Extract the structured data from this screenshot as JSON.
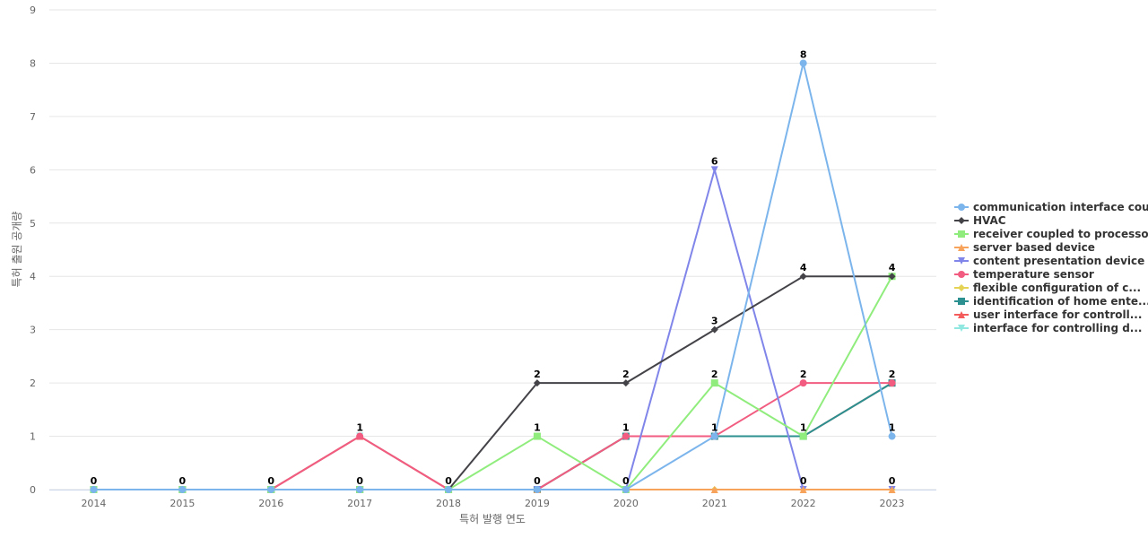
{
  "chart_data": {
    "type": "line",
    "title": "",
    "xlabel": "특허 발행 연도",
    "ylabel": "특허 출원 공개량",
    "ylim": [
      0,
      9
    ],
    "yticks": [
      "0",
      "1",
      "2",
      "3",
      "4",
      "5",
      "6",
      "7",
      "8",
      "9"
    ],
    "categories": [
      "2014",
      "2015",
      "2016",
      "2017",
      "2018",
      "2019",
      "2020",
      "2021",
      "2022",
      "2023"
    ],
    "grid": true,
    "legend_position": "right",
    "series": [
      {
        "name": "communication interface cou...",
        "color": "#7cb5ec",
        "marker": "circle",
        "values": [
          0,
          0,
          0,
          0,
          0,
          0,
          0,
          1,
          8,
          1
        ]
      },
      {
        "name": "HVAC",
        "color": "#434348",
        "marker": "diamond",
        "values": [
          0,
          0,
          0,
          0,
          0,
          2,
          2,
          3,
          4,
          4
        ]
      },
      {
        "name": "receiver coupled to processor",
        "color": "#90ed7d",
        "marker": "square",
        "values": [
          0,
          0,
          0,
          0,
          0,
          1,
          0,
          2,
          1,
          4
        ]
      },
      {
        "name": "server based device",
        "color": "#f7a35c",
        "marker": "triangle",
        "values": [
          0,
          0,
          0,
          0,
          0,
          0,
          0,
          0,
          0,
          0
        ]
      },
      {
        "name": "content presentation device",
        "color": "#8085e9",
        "marker": "triangle-down",
        "values": [
          0,
          0,
          0,
          0,
          0,
          0,
          0,
          6,
          0,
          0
        ]
      },
      {
        "name": "temperature sensor",
        "color": "#f15c80",
        "marker": "circle",
        "values": [
          0,
          0,
          0,
          1,
          0,
          0,
          1,
          1,
          2,
          2
        ]
      },
      {
        "name": "flexible configuration of c...",
        "color": "#e4d354",
        "marker": "diamond",
        "values": [
          0,
          0,
          0,
          0,
          0,
          0,
          0,
          0,
          0,
          0
        ]
      },
      {
        "name": "identification of home ente...",
        "color": "#2b908f",
        "marker": "square",
        "values": [
          0,
          0,
          0,
          0,
          0,
          0,
          1,
          1,
          1,
          2
        ]
      },
      {
        "name": "user interface for controll...",
        "color": "#f45b5b",
        "marker": "triangle",
        "values": [
          0,
          0,
          0,
          1,
          0,
          0,
          1,
          1,
          1,
          2
        ]
      },
      {
        "name": "interface for controlling d...",
        "color": "#91e8e1",
        "marker": "triangle-down",
        "values": [
          0,
          0,
          0,
          1,
          0,
          0,
          1,
          1,
          1,
          2
        ]
      }
    ],
    "data_labels": [
      {
        "x": "2014",
        "y": 0,
        "text": "0"
      },
      {
        "x": "2015",
        "y": 0,
        "text": "0"
      },
      {
        "x": "2016",
        "y": 0,
        "text": "0"
      },
      {
        "x": "2017",
        "y": 1,
        "text": "1"
      },
      {
        "x": "2017",
        "y": 0,
        "text": "0"
      },
      {
        "x": "2018",
        "y": 0,
        "text": "0"
      },
      {
        "x": "2019",
        "y": 2,
        "text": "2"
      },
      {
        "x": "2019",
        "y": 1,
        "text": "1"
      },
      {
        "x": "2019",
        "y": 0,
        "text": "0"
      },
      {
        "x": "2020",
        "y": 2,
        "text": "2"
      },
      {
        "x": "2020",
        "y": 1,
        "text": "1"
      },
      {
        "x": "2020",
        "y": 0,
        "text": "0"
      },
      {
        "x": "2021",
        "y": 6,
        "text": "6"
      },
      {
        "x": "2021",
        "y": 3,
        "text": "3"
      },
      {
        "x": "2021",
        "y": 2,
        "text": "2"
      },
      {
        "x": "2021",
        "y": 1,
        "text": "1"
      },
      {
        "x": "2022",
        "y": 8,
        "text": "8"
      },
      {
        "x": "2022",
        "y": 4,
        "text": "4"
      },
      {
        "x": "2022",
        "y": 2,
        "text": "2"
      },
      {
        "x": "2022",
        "y": 1,
        "text": "1"
      },
      {
        "x": "2022",
        "y": 0,
        "text": "0"
      },
      {
        "x": "2023",
        "y": 4,
        "text": "4"
      },
      {
        "x": "2023",
        "y": 2,
        "text": "2"
      },
      {
        "x": "2023",
        "y": 1,
        "text": "1"
      },
      {
        "x": "2023",
        "y": 0,
        "text": "0"
      }
    ]
  }
}
